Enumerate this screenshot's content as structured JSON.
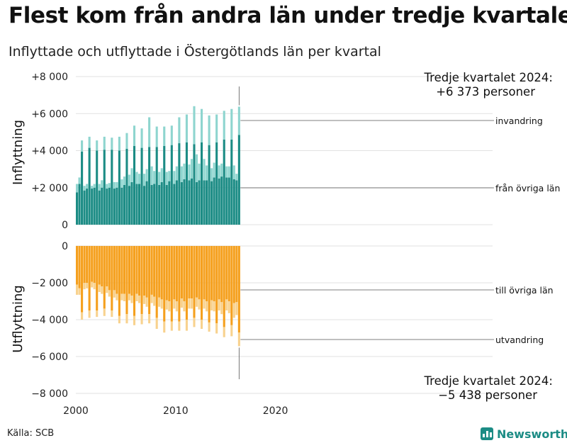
{
  "title": "Flest kom från andra län under tredje kvartalet",
  "subtitle": "Inflyttade och utflyttade i Östergötlands län per kvartal",
  "source": "Källa: SCB",
  "brand": "Newsworthy",
  "colors": {
    "in_other_counties": "#1c8c85",
    "in_immigration": "#8ed5cf",
    "out_other_counties": "#f5a01e",
    "out_emigration": "#f8d28e",
    "grid": "#e2e2e2",
    "brand": "#1c8c85"
  },
  "chart_data": [
    {
      "type": "bar",
      "stacked": true,
      "ylabel": "Inflyttning",
      "ylim": [
        0,
        8000
      ],
      "yticks": [
        0,
        2000,
        4000,
        6000,
        8000
      ],
      "ytick_labels": [
        "0",
        "+2 000",
        "+4 000",
        "+6 000",
        "+8 000"
      ],
      "series": [
        {
          "name": "från övriga län",
          "values": [
            1750,
            2200,
            3950,
            1850,
            1950,
            4150,
            1950,
            2000,
            4000,
            1850,
            2000,
            4050,
            1950,
            2000,
            4050,
            1950,
            2000,
            4000,
            2000,
            2150,
            4100,
            2100,
            2300,
            4250,
            2200,
            2200,
            4150,
            2100,
            2350,
            4200,
            2150,
            2200,
            4200,
            2150,
            2300,
            4250,
            2150,
            2350,
            4300,
            2200,
            2400,
            4400,
            2300,
            2450,
            4450,
            2400,
            2500,
            4350,
            2300,
            2400,
            4450,
            2400,
            2400,
            4300,
            2350,
            2550,
            4450,
            2500,
            2600,
            4600,
            2550,
            2550,
            4600,
            2450,
            2400,
            4850
          ]
        },
        {
          "name": "invandring",
          "values": [
            450,
            350,
            600,
            250,
            250,
            600,
            150,
            200,
            550,
            350,
            400,
            700,
            250,
            250,
            650,
            350,
            300,
            750,
            450,
            450,
            850,
            600,
            750,
            1100,
            650,
            550,
            1050,
            650,
            650,
            1600,
            1000,
            700,
            1100,
            700,
            750,
            1050,
            700,
            550,
            1050,
            700,
            750,
            1400,
            850,
            850,
            1500,
            850,
            1050,
            2050,
            1500,
            900,
            1800,
            1150,
            800,
            1600,
            700,
            800,
            1500,
            700,
            700,
            1550,
            600,
            600,
            1650,
            750,
            350,
            1523
          ]
        }
      ]
    },
    {
      "type": "bar",
      "stacked": true,
      "ylabel": "Utflyttning",
      "ylim": [
        -8000,
        0
      ],
      "yticks": [
        0,
        -2000,
        -4000,
        -6000,
        -8000
      ],
      "ytick_labels": [
        "0",
        "−2 000",
        "−4 000",
        "−6 000",
        "−8 000"
      ],
      "series": [
        {
          "name": "till övriga län",
          "values": [
            -2100,
            -2300,
            -3600,
            -2000,
            -2000,
            -3500,
            -1950,
            -2000,
            -3500,
            -2100,
            -2200,
            -3400,
            -2200,
            -2400,
            -3500,
            -2400,
            -2600,
            -3800,
            -2600,
            -2600,
            -3700,
            -2600,
            -2700,
            -3800,
            -2600,
            -2700,
            -3700,
            -2700,
            -2800,
            -3700,
            -2650,
            -2750,
            -3900,
            -2800,
            -2900,
            -4100,
            -2950,
            -3000,
            -4100,
            -2900,
            -3000,
            -4100,
            -2850,
            -3000,
            -4000,
            -2850,
            -2850,
            -3900,
            -2800,
            -2900,
            -4000,
            -2900,
            -3000,
            -4150,
            -2950,
            -3000,
            -4200,
            -2900,
            -3050,
            -4400,
            -2900,
            -3000,
            -4300,
            -3100,
            -3050,
            -4700
          ]
        },
        {
          "name": "utvandring",
          "values": [
            -550,
            -350,
            -400,
            -350,
            -300,
            -400,
            -300,
            -350,
            -350,
            -400,
            -400,
            -400,
            -350,
            -350,
            -350,
            -400,
            -350,
            -400,
            -350,
            -400,
            -500,
            -350,
            -400,
            -500,
            -400,
            -400,
            -550,
            -450,
            -500,
            -500,
            -450,
            -500,
            -600,
            -500,
            -500,
            -600,
            -500,
            -550,
            -500,
            -500,
            -550,
            -500,
            -500,
            -550,
            -600,
            -550,
            -550,
            -500,
            -500,
            -550,
            -500,
            -500,
            -550,
            -500,
            -550,
            -550,
            -550,
            -600,
            -650,
            -550,
            -600,
            -650,
            -600,
            -800,
            -700,
            -738
          ]
        }
      ]
    }
  ],
  "x_axis": {
    "start_year": 2000,
    "quarters_per_year": 4,
    "tick_years": [
      2000,
      2010,
      2020
    ],
    "tick_labels": [
      "2000",
      "2010",
      "2020"
    ]
  },
  "annotations": {
    "top_line1": "Tredje kvartalet 2024:",
    "top_line2": "+6 373 personer",
    "bottom_line1": "Tredje kvartalet 2024:",
    "bottom_line2": "−5 438 personer"
  }
}
